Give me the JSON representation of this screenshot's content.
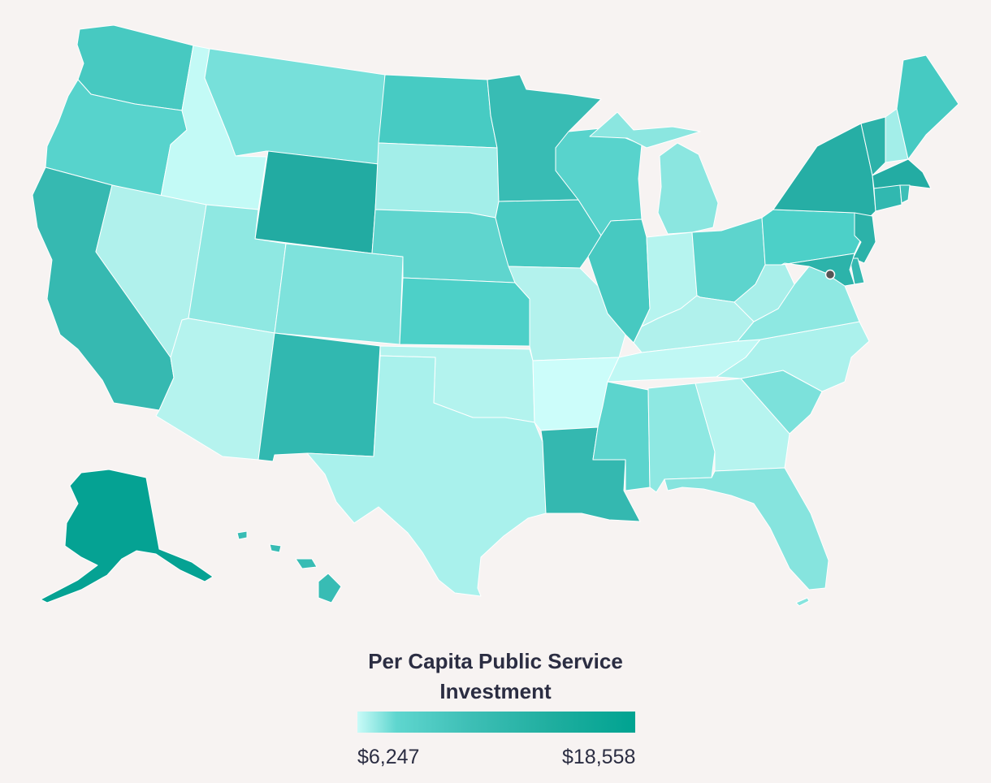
{
  "legend": {
    "title": "Per Capita Public Service Investment",
    "min_label": "$6,247",
    "max_label": "$18,558",
    "color_low": "#c9fbf8",
    "color_high": "#00a391"
  },
  "marker": {
    "color": "#555555"
  },
  "states": [
    {
      "id": "WA",
      "color": "#47c9c1"
    },
    {
      "id": "OR",
      "color": "#57d3cc"
    },
    {
      "id": "CA",
      "color": "#36b9b1"
    },
    {
      "id": "ID",
      "color": "#c3faf6"
    },
    {
      "id": "NV",
      "color": "#b0f1ec"
    },
    {
      "id": "MT",
      "color": "#77e0da"
    },
    {
      "id": "WY",
      "color": "#22aba2"
    },
    {
      "id": "UT",
      "color": "#8fe8e2"
    },
    {
      "id": "AZ",
      "color": "#b5f3ee"
    },
    {
      "id": "CO",
      "color": "#7ee2dc"
    },
    {
      "id": "NM",
      "color": "#31b8b0"
    },
    {
      "id": "ND",
      "color": "#47cbc3"
    },
    {
      "id": "SD",
      "color": "#a3eee9"
    },
    {
      "id": "NE",
      "color": "#5fd5ce"
    },
    {
      "id": "KS",
      "color": "#4dd0c8"
    },
    {
      "id": "OK",
      "color": "#b3f3ee"
    },
    {
      "id": "TX",
      "color": "#a9f1ec"
    },
    {
      "id": "MN",
      "color": "#38bcb4"
    },
    {
      "id": "IA",
      "color": "#47c9c1"
    },
    {
      "id": "MO",
      "color": "#b3f2ed"
    },
    {
      "id": "AR",
      "color": "#ccfdfa"
    },
    {
      "id": "LA",
      "color": "#34b8b0"
    },
    {
      "id": "WI",
      "color": "#58d3cc"
    },
    {
      "id": "IL",
      "color": "#47c9c1"
    },
    {
      "id": "MI",
      "color": "#8be6e0"
    },
    {
      "id": "IN",
      "color": "#b6f4ef"
    },
    {
      "id": "OH",
      "color": "#5dd4cd"
    },
    {
      "id": "KY",
      "color": "#b0f1ec"
    },
    {
      "id": "TN",
      "color": "#c0f8f4"
    },
    {
      "id": "MS",
      "color": "#5cd4cd"
    },
    {
      "id": "AL",
      "color": "#8ee8e2"
    },
    {
      "id": "GA",
      "color": "#b6f4ef"
    },
    {
      "id": "FL",
      "color": "#86e4de"
    },
    {
      "id": "SC",
      "color": "#7ce1db"
    },
    {
      "id": "NC",
      "color": "#abf1ec"
    },
    {
      "id": "VA",
      "color": "#8ee8e2"
    },
    {
      "id": "WV",
      "color": "#a8efea"
    },
    {
      "id": "PA",
      "color": "#4cd0c8"
    },
    {
      "id": "NY",
      "color": "#26aea5"
    },
    {
      "id": "VT",
      "color": "#2cb2a9"
    },
    {
      "id": "NH",
      "color": "#a3eee9"
    },
    {
      "id": "ME",
      "color": "#46cac2"
    },
    {
      "id": "MA",
      "color": "#23aca3"
    },
    {
      "id": "CT",
      "color": "#31b8b0"
    },
    {
      "id": "RI",
      "color": "#3cbfb7"
    },
    {
      "id": "NJ",
      "color": "#2cb2a9"
    },
    {
      "id": "DE",
      "color": "#36b9b1"
    },
    {
      "id": "MD",
      "color": "#2cb3aa"
    },
    {
      "id": "AK",
      "color": "#05a293"
    },
    {
      "id": "HI",
      "color": "#38bcb4"
    }
  ]
}
